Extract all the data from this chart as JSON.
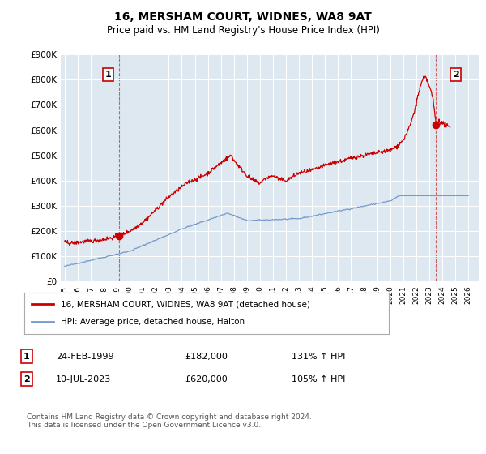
{
  "title": "16, MERSHAM COURT, WIDNES, WA8 9AT",
  "subtitle": "Price paid vs. HM Land Registry's House Price Index (HPI)",
  "ylabel_vals": [
    0,
    100000,
    200000,
    300000,
    400000,
    500000,
    600000,
    700000,
    800000,
    900000
  ],
  "ylabel_labels": [
    "£0",
    "£100K",
    "£200K",
    "£300K",
    "£400K",
    "£500K",
    "£600K",
    "£700K",
    "£800K",
    "£900K"
  ],
  "x_tick_years": [
    1995,
    1996,
    1997,
    1998,
    1999,
    2000,
    2001,
    2002,
    2003,
    2004,
    2005,
    2006,
    2007,
    2008,
    2009,
    2010,
    2011,
    2012,
    2013,
    2014,
    2015,
    2016,
    2017,
    2018,
    2019,
    2020,
    2021,
    2022,
    2023,
    2024,
    2025,
    2026
  ],
  "sale1_year": 1999.15,
  "sale1_price": 182000,
  "sale1_label": "1",
  "sale1_date": "24-FEB-1999",
  "sale1_price_str": "£182,000",
  "sale1_hpi": "131% ↑ HPI",
  "sale2_year": 2023.53,
  "sale2_price": 620000,
  "sale2_label": "2",
  "sale2_date": "10-JUL-2023",
  "sale2_price_str": "£620,000",
  "sale2_hpi": "105% ↑ HPI",
  "red_line_color": "#cc0000",
  "blue_line_color": "#7799cc",
  "plot_bg_color": "#dde8f0",
  "fig_bg_color": "#ffffff",
  "grid_color": "#ffffff",
  "legend_line1": "16, MERSHAM COURT, WIDNES, WA8 9AT (detached house)",
  "legend_line2": "HPI: Average price, detached house, Halton",
  "footer": "Contains HM Land Registry data © Crown copyright and database right 2024.\nThis data is licensed under the Open Government Licence v3.0.",
  "ylim": [
    0,
    900000
  ],
  "xlim_start": 1994.7,
  "xlim_end": 2026.8
}
